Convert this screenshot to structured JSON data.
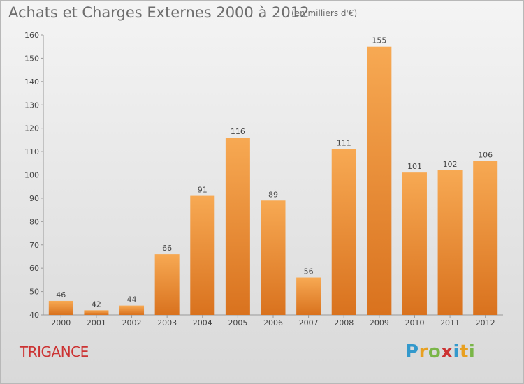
{
  "title": "Achats et Charges Externes 2000 à 2012",
  "subtitle": "(en milliers d'€)",
  "commune": "TRIGANCE",
  "logo": {
    "letters": [
      "P",
      "r",
      "o",
      "x",
      "i",
      "t",
      "i"
    ],
    "colors": [
      "#3399cc",
      "#e8a020",
      "#7ab648",
      "#cc3333",
      "#3399cc",
      "#e8a020",
      "#7ab648"
    ]
  },
  "colors": {
    "bar_light": "#f7a953",
    "bar_dark": "#d9721e",
    "commune": "#cc3333"
  },
  "chart_data": {
    "type": "bar",
    "categories": [
      "2000",
      "2001",
      "2002",
      "2003",
      "2004",
      "2005",
      "2006",
      "2007",
      "2008",
      "2009",
      "2010",
      "2011",
      "2012"
    ],
    "values": [
      46,
      42,
      44,
      66,
      91,
      116,
      89,
      56,
      111,
      155,
      101,
      102,
      106
    ],
    "ylim": [
      40,
      160
    ],
    "yticks": [
      40,
      50,
      60,
      70,
      80,
      90,
      100,
      110,
      120,
      130,
      140,
      150,
      160
    ],
    "grid": false
  }
}
